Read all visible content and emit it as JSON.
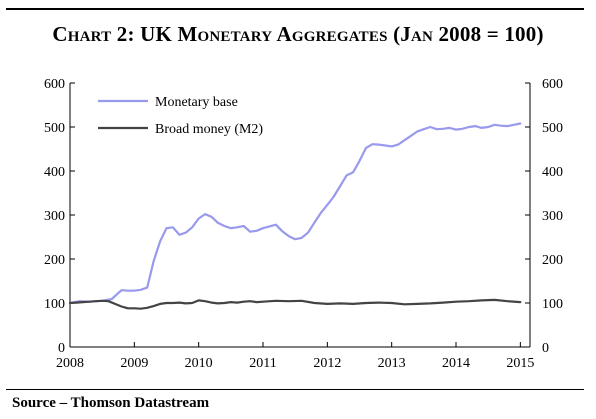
{
  "title": "Chart 2: UK Monetary Aggregates (Jan 2008 = 100)",
  "source": "Source – Thomson Datastream",
  "chart_data": {
    "type": "line",
    "title": "Chart 2: UK Monetary Aggregates (Jan 2008 = 100)",
    "xlabel": "",
    "ylabel": "",
    "xlim": [
      2008,
      2015.15
    ],
    "ylim": [
      0,
      600
    ],
    "yticks": [
      0,
      100,
      200,
      300,
      400,
      500,
      600
    ],
    "xticks": [
      2008,
      2009,
      2010,
      2011,
      2012,
      2013,
      2014,
      2015
    ],
    "secondary_yaxis": true,
    "grid": false,
    "legend_position": "top-left",
    "series": [
      {
        "name": "Monetary base",
        "color": "#9999ee",
        "x": [
          2008.0,
          2008.15,
          2008.3,
          2008.5,
          2008.65,
          2008.8,
          2008.9,
          2009.0,
          2009.1,
          2009.2,
          2009.3,
          2009.4,
          2009.5,
          2009.6,
          2009.7,
          2009.8,
          2009.9,
          2010.0,
          2010.1,
          2010.2,
          2010.3,
          2010.4,
          2010.5,
          2010.6,
          2010.7,
          2010.8,
          2010.9,
          2011.0,
          2011.1,
          2011.2,
          2011.3,
          2011.4,
          2011.5,
          2011.6,
          2011.7,
          2011.8,
          2011.9,
          2012.0,
          2012.1,
          2012.2,
          2012.3,
          2012.4,
          2012.5,
          2012.6,
          2012.7,
          2012.8,
          2012.9,
          2013.0,
          2013.1,
          2013.2,
          2013.3,
          2013.4,
          2013.5,
          2013.6,
          2013.7,
          2013.8,
          2013.9,
          2014.0,
          2014.1,
          2014.2,
          2014.3,
          2014.4,
          2014.5,
          2014.6,
          2014.7,
          2014.8,
          2014.9,
          2015.0
        ],
        "y": [
          100,
          104,
          103,
          105,
          109,
          129,
          128,
          128,
          130,
          135,
          195,
          240,
          270,
          272,
          255,
          260,
          272,
          292,
          302,
          296,
          282,
          275,
          270,
          272,
          275,
          262,
          264,
          270,
          274,
          278,
          263,
          252,
          245,
          248,
          260,
          283,
          305,
          323,
          342,
          366,
          390,
          397,
          423,
          452,
          461,
          460,
          458,
          456,
          460,
          470,
          480,
          490,
          495,
          500,
          495,
          496,
          498,
          494,
          496,
          500,
          502,
          498,
          500,
          505,
          503,
          502,
          505,
          508
        ]
      },
      {
        "name": "Broad money (M2)",
        "color": "#444444",
        "x": [
          2008.0,
          2008.1,
          2008.2,
          2008.3,
          2008.4,
          2008.5,
          2008.6,
          2008.7,
          2008.8,
          2008.9,
          2009.0,
          2009.1,
          2009.2,
          2009.3,
          2009.4,
          2009.5,
          2009.6,
          2009.7,
          2009.8,
          2009.9,
          2010.0,
          2010.1,
          2010.2,
          2010.3,
          2010.4,
          2010.5,
          2010.6,
          2010.7,
          2010.8,
          2010.9,
          2011.0,
          2011.2,
          2011.4,
          2011.6,
          2011.8,
          2012.0,
          2012.2,
          2012.4,
          2012.6,
          2012.8,
          2013.0,
          2013.2,
          2013.4,
          2013.6,
          2013.8,
          2014.0,
          2014.2,
          2014.4,
          2014.6,
          2014.8,
          2015.0
        ],
        "y": [
          100,
          101,
          102,
          103,
          104,
          105,
          104,
          98,
          92,
          88,
          88,
          87,
          89,
          93,
          98,
          100,
          100,
          101,
          99,
          100,
          106,
          104,
          101,
          99,
          100,
          102,
          101,
          103,
          104,
          102,
          103,
          105,
          104,
          105,
          100,
          98,
          99,
          98,
          100,
          101,
          100,
          97,
          98,
          99,
          101,
          103,
          104,
          106,
          107,
          104,
          102
        ]
      }
    ]
  }
}
